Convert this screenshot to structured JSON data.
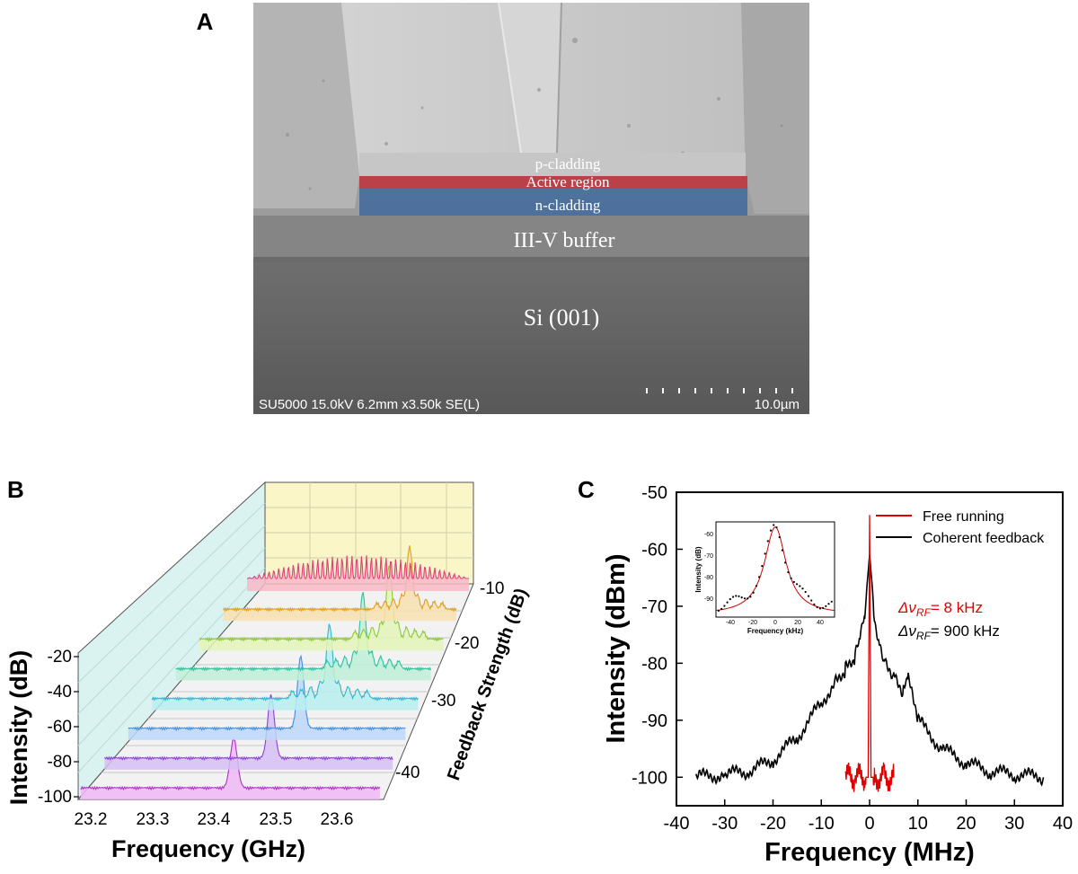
{
  "panel_a": {
    "label": "A",
    "layers": {
      "p_cladding": "p-cladding",
      "active_region": "Active region",
      "n_cladding": "n-cladding",
      "buffer": "III-V buffer",
      "substrate": "Si (001)"
    },
    "sem_info": "SU5000 15.0kV 6.2mm x3.50k SE(L)",
    "scale_bar": "10.0µm",
    "colors": {
      "active": "#c0303a",
      "n_cladding": "#3f6a9c"
    }
  },
  "panel_b": {
    "label": "B",
    "z_axis_title": "Intensity (dB)",
    "z_ticks": [
      "-20",
      "-40",
      "-60",
      "-80",
      "-100"
    ],
    "x_axis_title": "Frequency (GHz)",
    "x_ticks": [
      "23.2",
      "23.3",
      "23.4",
      "23.5",
      "23.6"
    ],
    "y_axis_title": "Feedback Strength (dB)",
    "y_ticks": [
      "-10",
      "-20",
      "-30",
      "-40"
    ]
  },
  "panel_c": {
    "label": "C",
    "legend": {
      "free": "Free running",
      "coherent": "Coherent feedback"
    },
    "linewidth_free_prefix": "Δν",
    "linewidth_free_sub": "RF",
    "linewidth_free_value": "= 8 kHz",
    "linewidth_coh_prefix": "Δν",
    "linewidth_coh_sub": "RF",
    "linewidth_coh_value": "= 900 kHz",
    "inset": {
      "ylabel": "Intensity (dB)",
      "xlabel": "Frequency (kHz)",
      "y_ticks": [
        "-60",
        "-70",
        "-80",
        "-90"
      ],
      "x_ticks": [
        "-40",
        "-20",
        "0",
        "20",
        "40"
      ]
    }
  },
  "chart_data": [
    {
      "type": "line",
      "id": "B",
      "title": "",
      "xlabel": "Frequency (GHz)",
      "ylabel": "Feedback Strength (dB)",
      "zlabel": "Intensity (dB)",
      "xlim": [
        23.2,
        23.65
      ],
      "zlim": [
        -100,
        -20
      ],
      "feedback_levels": [
        -10,
        -16,
        -20,
        -24,
        -28,
        -32,
        -36,
        -40
      ],
      "series": [
        {
          "name": "-40 dB",
          "dominant_peak_GHz": 23.43,
          "peak_dB": -56
        },
        {
          "name": "-36 dB",
          "dominant_peak_GHz": 23.46,
          "peak_dB": -44
        },
        {
          "name": "-32 dB",
          "dominant_peak_GHz": 23.48,
          "peak_dB": -36
        },
        {
          "name": "-28 dB",
          "dominant_peak_GHz": 23.5,
          "peak_dB": -34
        },
        {
          "name": "-24 dB",
          "dominant_peak_GHz": 23.53,
          "peak_dB": -32
        },
        {
          "name": "-20 dB",
          "dominant_peak_GHz": 23.55,
          "peak_dB": -34
        },
        {
          "name": "-16 dB",
          "dominant_peak_GHz": 23.56,
          "peak_dB": -44
        },
        {
          "name": "-10 dB",
          "dominant_peak_GHz": 23.55,
          "peak_dB": -50
        }
      ]
    },
    {
      "type": "line",
      "id": "C",
      "title": "",
      "xlabel": "Frequency (MHz)",
      "ylabel": "Intensity (dBm)",
      "xlim": [
        -40,
        40
      ],
      "ylim": [
        -105,
        -50
      ],
      "x_ticks": [
        -40,
        -30,
        -20,
        -10,
        0,
        10,
        20,
        30,
        40
      ],
      "y_ticks": [
        -50,
        -60,
        -70,
        -80,
        -90,
        -100
      ],
      "series": [
        {
          "name": "Free running",
          "color": "#e00000",
          "x": [
            -5,
            -3,
            -1,
            -0.3,
            0,
            0.3,
            1,
            3,
            5
          ],
          "y": [
            -100,
            -100,
            -100,
            -100,
            -54,
            -100,
            -100,
            -100,
            -100
          ]
        },
        {
          "name": "Coherent feedback",
          "color": "#000000",
          "x": [
            -36,
            -30,
            -25,
            -20,
            -15,
            -10,
            -7,
            -5,
            -3,
            -2,
            -1,
            -0.5,
            0,
            0.5,
            1,
            2,
            3,
            5,
            7,
            8,
            10,
            15,
            20,
            25,
            30,
            36
          ],
          "y": [
            -100,
            -99.5,
            -99,
            -97,
            -93,
            -87,
            -83,
            -81,
            -79,
            -76,
            -72,
            -66,
            -61,
            -66,
            -72,
            -76,
            -79,
            -82,
            -85,
            -83,
            -90,
            -95,
            -97.5,
            -99,
            -99.5,
            -100
          ]
        }
      ]
    },
    {
      "type": "scatter",
      "id": "C-inset",
      "xlabel": "Frequency (kHz)",
      "ylabel": "Intensity (dB)",
      "xlim": [
        -45,
        45
      ],
      "ylim": [
        -93,
        -55
      ],
      "fit_peak": {
        "x": 0,
        "y": -57,
        "fwhm_kHz": 8
      }
    }
  ]
}
